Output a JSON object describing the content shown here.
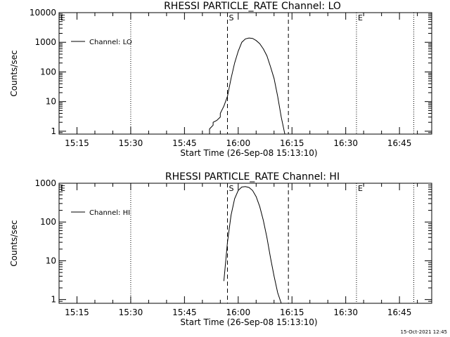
{
  "footer": {
    "timestamp": "15-Oct-2021 12:45"
  },
  "chart_data": [
    {
      "type": "line",
      "title": "RHESSI PARTICLE_RATE Channel: LO",
      "xlabel": "Start Time (26-Sep-08 15:13:10)",
      "ylabel": "Counts/sec",
      "y_scale": "log",
      "xlim": [
        "15:10",
        "16:54"
      ],
      "ylim": [
        0.8,
        10000
      ],
      "x_ticks": [
        "15:15",
        "15:30",
        "15:45",
        "16:00",
        "16:15",
        "16:30",
        "16:45"
      ],
      "y_ticks": [
        "1",
        "10",
        "100",
        "1000",
        "10000"
      ],
      "legend": {
        "position": "top-left",
        "entries": [
          "Channel: LO"
        ]
      },
      "markers": [
        {
          "label": "E",
          "time": "15:10",
          "style": "dotted"
        },
        {
          "label": "",
          "time": "15:30",
          "style": "dotted"
        },
        {
          "label": "S",
          "time": "15:57",
          "style": "dashed"
        },
        {
          "label": "",
          "time": "16:14",
          "style": "dashed"
        },
        {
          "label": "E",
          "time": "16:33",
          "style": "dotted"
        },
        {
          "label": "",
          "time": "16:49",
          "style": "dotted"
        }
      ],
      "series": [
        {
          "name": "Channel: LO",
          "x": [
            "15:52",
            "15:52",
            "15:53",
            "15:53",
            "15:54",
            "15:55",
            "15:55",
            "15:56",
            "15:57",
            "15:58",
            "15:59",
            "16:00",
            "16:01",
            "16:02",
            "16:03",
            "16:04",
            "16:05",
            "16:06",
            "16:07",
            "16:08",
            "16:09",
            "16:10",
            "16:11",
            "16:12",
            "16:13"
          ],
          "y": [
            0.8,
            1.2,
            1.6,
            2.0,
            2.3,
            3.0,
            4.0,
            7.0,
            15,
            60,
            200,
            500,
            1000,
            1300,
            1400,
            1350,
            1150,
            900,
            600,
            350,
            150,
            60,
            15,
            3,
            0.8
          ]
        }
      ]
    },
    {
      "type": "line",
      "title": "RHESSI PARTICLE_RATE Channel: HI",
      "xlabel": "Start Time (26-Sep-08 15:13:10)",
      "ylabel": "Counts/sec",
      "y_scale": "log",
      "xlim": [
        "15:10",
        "16:54"
      ],
      "ylim": [
        0.8,
        1000
      ],
      "x_ticks": [
        "15:15",
        "15:30",
        "15:45",
        "16:00",
        "16:15",
        "16:30",
        "16:45"
      ],
      "y_ticks": [
        "1",
        "10",
        "100",
        "1000"
      ],
      "legend": {
        "position": "top-left",
        "entries": [
          "Channel: HI"
        ]
      },
      "markers": [
        {
          "label": "E",
          "time": "15:10",
          "style": "dotted"
        },
        {
          "label": "",
          "time": "15:30",
          "style": "dotted"
        },
        {
          "label": "S",
          "time": "15:57",
          "style": "dashed"
        },
        {
          "label": "",
          "time": "16:14",
          "style": "dashed"
        },
        {
          "label": "E",
          "time": "16:33",
          "style": "dotted"
        },
        {
          "label": "",
          "time": "16:49",
          "style": "dotted"
        }
      ],
      "series": [
        {
          "name": "Channel: HI",
          "x": [
            "15:56",
            "15:57",
            "15:58",
            "15:59",
            "16:00",
            "16:01",
            "16:02",
            "16:03",
            "16:04",
            "16:05",
            "16:06",
            "16:07",
            "16:08",
            "16:09",
            "16:10",
            "16:11",
            "16:12"
          ],
          "y": [
            3,
            30,
            150,
            400,
            650,
            800,
            820,
            780,
            650,
            450,
            250,
            110,
            40,
            12,
            4,
            1.5,
            0.8
          ]
        }
      ]
    }
  ]
}
